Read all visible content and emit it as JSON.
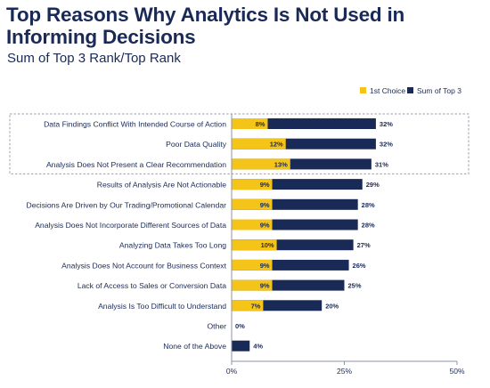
{
  "title": "Top Reasons Why Analytics Is Not Used in Informing Decisions",
  "subtitle": "Sum of Top 3 Rank/Top Rank",
  "chart_data": {
    "type": "bar",
    "orientation": "horizontal",
    "categories": [
      "Data Findings Conflict With Intended Course of Action",
      "Poor Data Quality",
      "Analysis Does Not Present a Clear Recommendation",
      "Results of Analysis Are Not Actionable",
      "Decisions Are Driven by Our Trading/Promotional Calendar",
      "Analysis Does Not Incorporate Different Sources of Data",
      "Analyzing Data Takes Too Long",
      "Analysis Does Not Account for Business Context",
      "Lack of Access to Sales or Conversion Data",
      "Analysis Is Too Difficult to Understand",
      "Other",
      "None of the Above"
    ],
    "series": [
      {
        "name": "1st Choice",
        "color": "#f5c419",
        "values": [
          8,
          12,
          13,
          9,
          9,
          9,
          10,
          9,
          9,
          7,
          0,
          null
        ],
        "labels": [
          "8%",
          "12%",
          "13%",
          "9%",
          "9%",
          "9%",
          "10%",
          "9%",
          "9%",
          "7%",
          "",
          ""
        ]
      },
      {
        "name": "Sum of Top 3",
        "color": "#1a2a57",
        "values": [
          32,
          32,
          31,
          29,
          28,
          28,
          27,
          26,
          25,
          20,
          0,
          4
        ],
        "labels": [
          "32%",
          "32%",
          "31%",
          "29%",
          "28%",
          "28%",
          "27%",
          "26%",
          "25%",
          "20%",
          "0%",
          "4%"
        ]
      }
    ],
    "xlim": [
      0,
      50
    ],
    "xticks": [
      "0%",
      "25%",
      "50%"
    ],
    "legend_position": "top-right",
    "highlighted_categories": [
      0,
      1,
      2
    ]
  }
}
